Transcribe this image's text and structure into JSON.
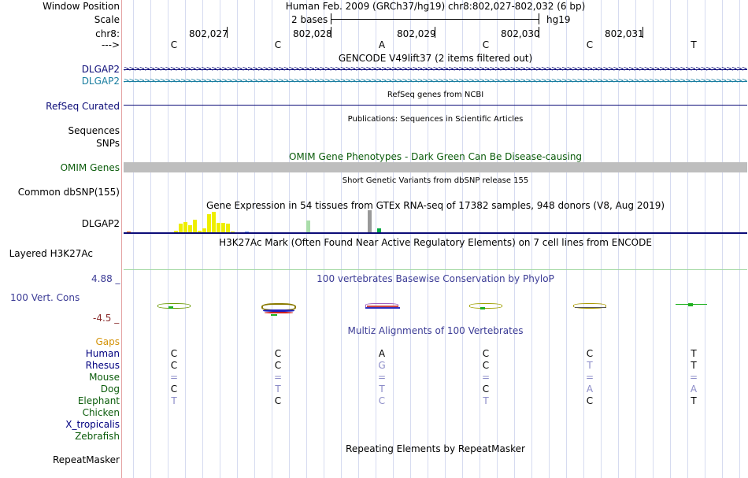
{
  "header": {
    "window_position_label": "Window Position",
    "window_position_value": "Human Feb. 2009 (GRCh37/hg19)   chr8:802,027-802,032 (6 bp)",
    "scale_label": "Scale",
    "scale_value": "2 bases",
    "scale_assembly": "hg19",
    "chrom_label": "chr8:",
    "strand_label": "--->",
    "positions": [
      "802,027",
      "802,028",
      "802,029",
      "802,030",
      "802,031"
    ],
    "bases": [
      "C",
      "C",
      "A",
      "C",
      "C",
      "T"
    ]
  },
  "tracks": {
    "gencode_title": "GENCODE V49lift37 (2 items filtered out)",
    "gencode_item1": "DLGAP2",
    "gencode_item2": "DLGAP2",
    "refseq_title": "RefSeq genes from NCBI",
    "refseq_label": "RefSeq Curated",
    "pubs_title": "Publications: Sequences in Scientific Articles",
    "sequences_label": "Sequences",
    "snps_label": "SNPs",
    "omim_title": "OMIM Gene Phenotypes - Dark Green Can Be Disease-causing",
    "omim_label": "OMIM Genes",
    "dbsnp_title": "Short Genetic Variants from dbSNP release 155",
    "dbsnp_label": "Common dbSNP(155)",
    "gtex_title": "Gene Expression in 54 tissues from GTEx RNA-seq of 17382 samples, 948 donors (V8, Aug 2019)",
    "gtex_label": "DLGAP2",
    "h3k27_title": "H3K27Ac Mark (Often Found Near Active Regulatory Elements) on 7 cell lines from ENCODE",
    "h3k27_label": "Layered H3K27Ac",
    "cons_title": "100 vertebrates Basewise Conservation by PhyloP",
    "cons_label": "100 Vert. Cons",
    "cons_max": "4.88 _",
    "cons_min": "-4.5 _",
    "multiz_title": "Multiz Alignments of 100 Vertebrates",
    "gaps_label": "Gaps",
    "repeat_title": "Repeating Elements by RepeatMasker",
    "repeat_label": "RepeatMasker"
  },
  "gtex_values": [
    2,
    0,
    1,
    0,
    0,
    0,
    0,
    0,
    0,
    0,
    3,
    12,
    14,
    10,
    18,
    3,
    6,
    25,
    28,
    13,
    13,
    12,
    2,
    1,
    0,
    2,
    0,
    0,
    1,
    0,
    0,
    0,
    0,
    0,
    0,
    0,
    0,
    0,
    17,
    0,
    0,
    0,
    1,
    1,
    0,
    0,
    0,
    0,
    1,
    0,
    0,
    30,
    0,
    6
  ],
  "gtex_colors": [
    "#ff6600",
    "#ff6600",
    "#ffaa00",
    "#ffaa00",
    "#ffaa00",
    "#ffaa00",
    "#cc66ff",
    "#cc66ff",
    "#cc66ff",
    "#cc66ff",
    "#eeee00",
    "#eeee00",
    "#eeee00",
    "#eeee00",
    "#eeee00",
    "#eeee00",
    "#eeee00",
    "#eeee00",
    "#eeee00",
    "#eeee00",
    "#eeee00",
    "#eeee00",
    "#eeee00",
    "#eeee00",
    "#00cccc",
    "#6699ff",
    "#6699ff",
    "#00aaaa",
    "#3366cc",
    "#cc9966",
    "#cc9966",
    "#aaaaff",
    "#bbbbbb",
    "#ff99cc",
    "#ff66cc",
    "#cc33cc",
    "#99ff99",
    "#99ff99",
    "#aaddaa",
    "#66cc66",
    "#77aa77",
    "#5577aa",
    "#3366cc",
    "#3366cc",
    "#336699",
    "#ffcccc",
    "#aaaaaa",
    "#ccccff",
    "#0000ff",
    "#aa66aa",
    "#ffcc99",
    "#999999",
    "#bbbbbb",
    "#00aa44"
  ],
  "species": [
    {
      "name": "Human",
      "color": "#000080",
      "bases": [
        "C",
        "C",
        "A",
        "C",
        "C",
        "T"
      ],
      "base_colors": [
        "#000",
        "#000",
        "#000",
        "#000",
        "#000",
        "#000"
      ]
    },
    {
      "name": "Rhesus",
      "color": "#000080",
      "bases": [
        "C",
        "C",
        "G",
        "C",
        "T",
        "T"
      ],
      "base_colors": [
        "#000",
        "#000",
        "#8c8cc8",
        "#000",
        "#8c8cc8",
        "#000"
      ]
    },
    {
      "name": "Mouse",
      "color": "#0b5c0b",
      "bases": [
        "=",
        "=",
        "=",
        "=",
        "=",
        "="
      ],
      "base_colors": [
        "#8c8cc8",
        "#8c8cc8",
        "#8c8cc8",
        "#8c8cc8",
        "#8c8cc8",
        "#8c8cc8"
      ]
    },
    {
      "name": "Dog",
      "color": "#0b5c0b",
      "bases": [
        "C",
        "T",
        "T",
        "C",
        "A",
        "A"
      ],
      "base_colors": [
        "#000",
        "#8c8cc8",
        "#8c8cc8",
        "#000",
        "#8c8cc8",
        "#8c8cc8"
      ]
    },
    {
      "name": "Elephant",
      "color": "#0b5c0b",
      "bases": [
        "T",
        "C",
        "C",
        "T",
        "C",
        "T"
      ],
      "base_colors": [
        "#8c8cc8",
        "#000",
        "#8c8cc8",
        "#8c8cc8",
        "#000",
        "#000"
      ]
    },
    {
      "name": "Chicken",
      "color": "#0b5c0b",
      "bases": [
        "",
        "",
        "",
        "",
        "",
        ""
      ],
      "base_colors": [
        "#000",
        "#000",
        "#000",
        "#000",
        "#000",
        "#000"
      ]
    },
    {
      "name": "X_tropicalis",
      "color": "#000080",
      "bases": [
        "",
        "",
        "",
        "",
        "",
        ""
      ],
      "base_colors": [
        "#000",
        "#000",
        "#000",
        "#000",
        "#000",
        "#000"
      ]
    },
    {
      "name": "Zebrafish",
      "color": "#0b5c0b",
      "bases": [
        "",
        "",
        "",
        "",
        "",
        ""
      ],
      "base_colors": [
        "#000",
        "#000",
        "#000",
        "#000",
        "#000",
        "#000"
      ]
    }
  ],
  "colors": {
    "gencode1": "#0c0c78",
    "gencode2": "#1a7ea0",
    "refseq": "#0c0c78",
    "omim": "#0b5c0b",
    "omim_bar": "#bebebe",
    "gaps": "#d4930a",
    "cons_title": "#3c3c96",
    "cons_max": "#3c3c96",
    "cons_min": "#8b2e2e",
    "h3k27_line": "#9fd79f"
  }
}
